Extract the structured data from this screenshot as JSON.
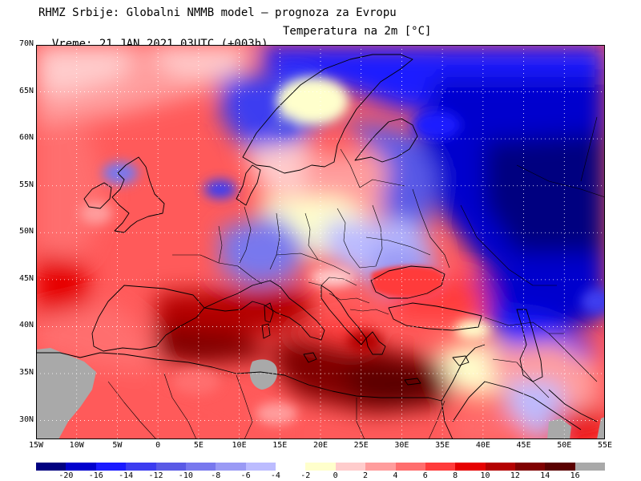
{
  "header": {
    "line1": "RHMZ Srbije: Globalni NMMB model — prognoza za Evropu",
    "line2_time": "Vreme: 21 JAN 2021 03UTC (+003h)",
    "line2_param": "Temperatura na 2m [°C]"
  },
  "map": {
    "projection": "latlon",
    "lon_range": [
      -15,
      55
    ],
    "lat_range": [
      28,
      70
    ],
    "lat_ticks": [
      {
        "value": 70,
        "label": "70N"
      },
      {
        "value": 65,
        "label": "65N"
      },
      {
        "value": 60,
        "label": "60N"
      },
      {
        "value": 55,
        "label": "55N"
      },
      {
        "value": 50,
        "label": "50N"
      },
      {
        "value": 45,
        "label": "45N"
      },
      {
        "value": 40,
        "label": "40N"
      },
      {
        "value": 35,
        "label": "35N"
      },
      {
        "value": 30,
        "label": "30N"
      }
    ],
    "lon_ticks": [
      {
        "value": -15,
        "label": "15W"
      },
      {
        "value": -10,
        "label": "10W"
      },
      {
        "value": -5,
        "label": "5W"
      },
      {
        "value": 0,
        "label": "0"
      },
      {
        "value": 5,
        "label": "5E"
      },
      {
        "value": 10,
        "label": "10E"
      },
      {
        "value": 15,
        "label": "15E"
      },
      {
        "value": 20,
        "label": "20E"
      },
      {
        "value": 25,
        "label": "25E"
      },
      {
        "value": 30,
        "label": "30E"
      },
      {
        "value": 35,
        "label": "35E"
      },
      {
        "value": 40,
        "label": "40E"
      },
      {
        "value": 45,
        "label": "45E"
      },
      {
        "value": 50,
        "label": "50E"
      },
      {
        "value": 55,
        "label": "55E"
      }
    ]
  },
  "legend": {
    "colors": [
      "#000080",
      "#0000cd",
      "#1a1aff",
      "#3c3cf0",
      "#5a5ae6",
      "#7878ee",
      "#9a9af5",
      "#bcbcff",
      "#ffffff",
      "#ffffcc",
      "#ffcccc",
      "#ff9d9d",
      "#ff6e6e",
      "#ff3b3b",
      "#e60000",
      "#b40000",
      "#800000",
      "#5a0000",
      "#a9a9a9"
    ],
    "ticks": [
      "-20",
      "-16",
      "-14",
      "-12",
      "-10",
      "-8",
      "-6",
      "-4",
      "-2",
      "0",
      "2",
      "4",
      "6",
      "8",
      "10",
      "12",
      "14",
      "16"
    ]
  }
}
